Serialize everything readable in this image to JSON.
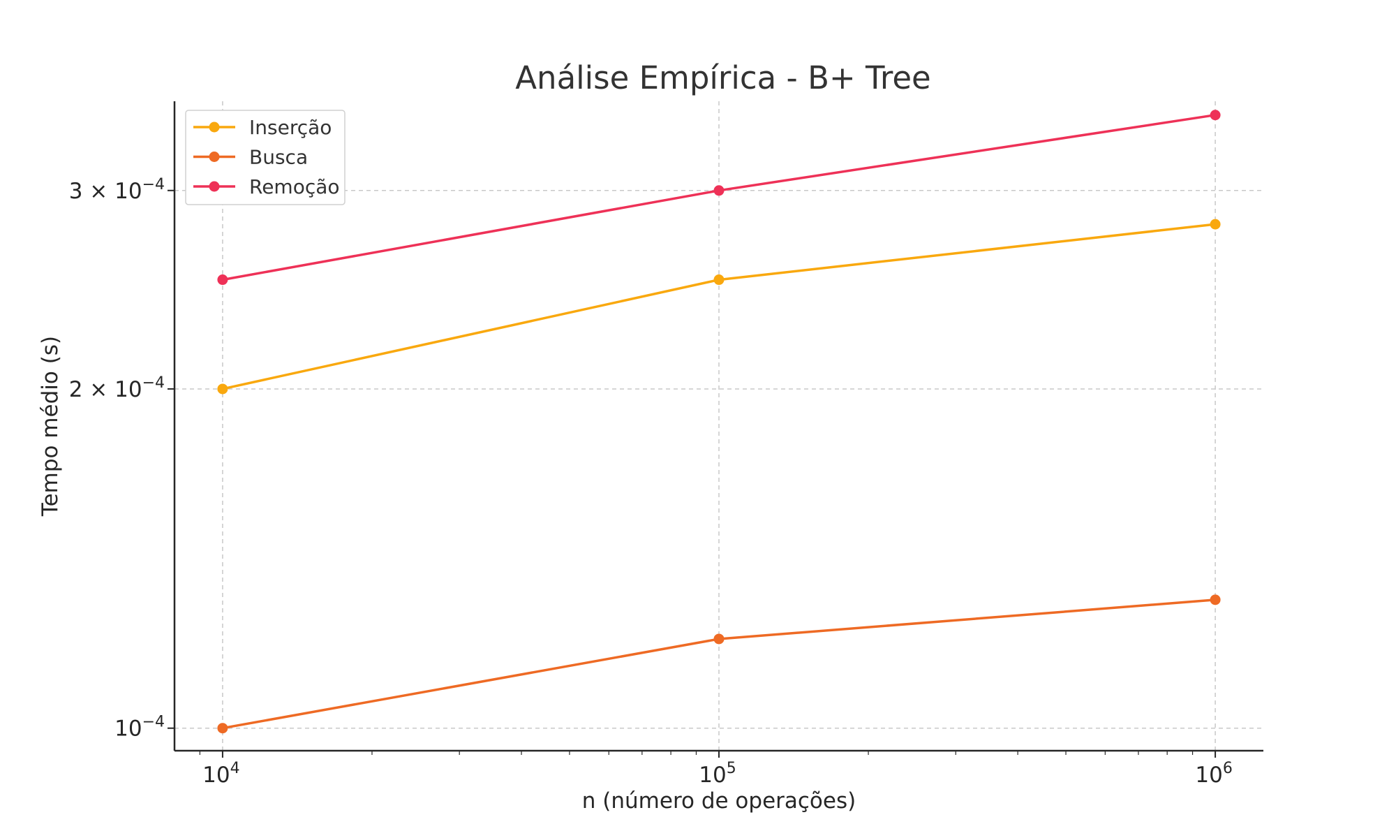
{
  "chart_data": {
    "type": "line",
    "title": "Análise Empírica - B+ Tree",
    "xlabel": "n (número de operações)",
    "ylabel": "Tempo médio (s)",
    "x_scale": "log",
    "y_scale": "log",
    "x": [
      10000,
      100000,
      1000000
    ],
    "xlim": [
      8000,
      1250000
    ],
    "ylim": [
      9.55e-05,
      0.00036
    ],
    "x_ticks": [
      {
        "value": 10000,
        "base": "10",
        "exp": "4"
      },
      {
        "value": 100000,
        "base": "10",
        "exp": "5"
      },
      {
        "value": 1000000,
        "base": "10",
        "exp": "6"
      }
    ],
    "y_ticks": [
      {
        "value": 0.0001,
        "mantissa": "",
        "base": "10",
        "exp": "−4"
      },
      {
        "value": 0.0002,
        "mantissa": "2 × ",
        "base": "10",
        "exp": "−4"
      },
      {
        "value": 0.0003,
        "mantissa": "3 × ",
        "base": "10",
        "exp": "−4"
      }
    ],
    "grid": true,
    "legend_position": "top-left",
    "series": [
      {
        "name": "Inserção",
        "color": "#F9A80E",
        "values": [
          0.0002,
          0.00025,
          0.00028
        ]
      },
      {
        "name": "Busca",
        "color": "#EE6A24",
        "values": [
          0.0001,
          0.00012,
          0.00013
        ]
      },
      {
        "name": "Remoção",
        "color": "#EE3157",
        "values": [
          0.00025,
          0.0003,
          0.00035
        ]
      }
    ]
  }
}
